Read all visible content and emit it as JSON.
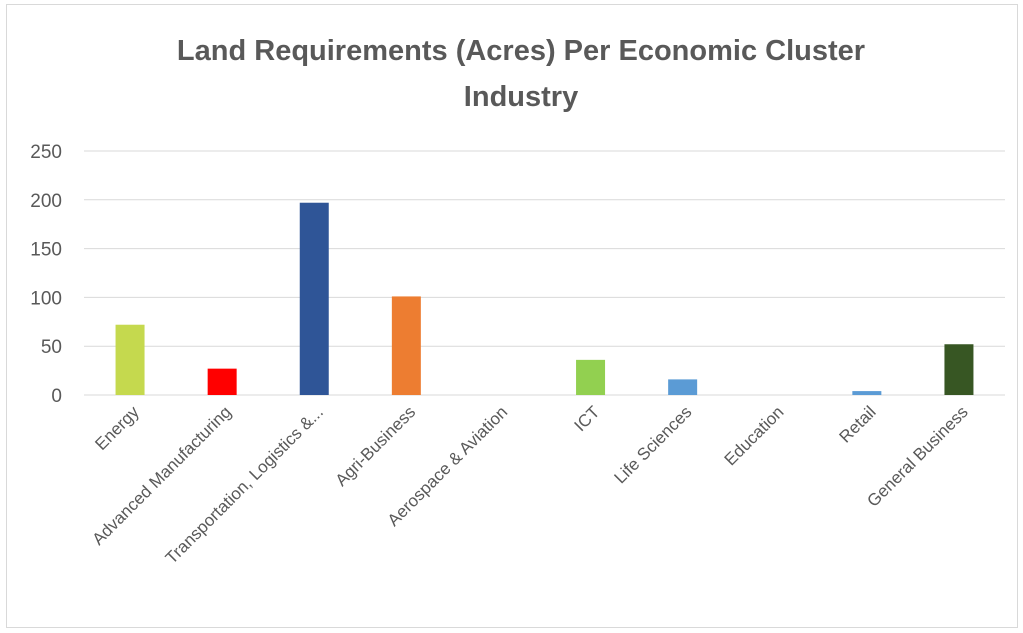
{
  "chart_data": {
    "type": "bar",
    "title_lines": [
      "Land Requirements (Acres) Per Economic Cluster",
      "Industry"
    ],
    "categories": [
      "Energy",
      "Advanced Manufacturing",
      "Transportation, Logistics &...",
      "Agri-Business",
      "Aerospace & Aviation",
      "ICT",
      "Life Sciences",
      "Education",
      "Retail",
      "General Business"
    ],
    "values": [
      72,
      27,
      197,
      101,
      0,
      36,
      16,
      0,
      4,
      52
    ],
    "colors": [
      "#c5d94e",
      "#ff0000",
      "#2f5597",
      "#ed7d31",
      "#a5a5a5",
      "#92d050",
      "#5b9bd5",
      "#a5a5a5",
      "#5b9bd5",
      "#375623"
    ],
    "ylim": [
      0,
      250
    ],
    "yticks": [
      0,
      50,
      100,
      150,
      200,
      250
    ],
    "grid": true,
    "legend": "none"
  }
}
